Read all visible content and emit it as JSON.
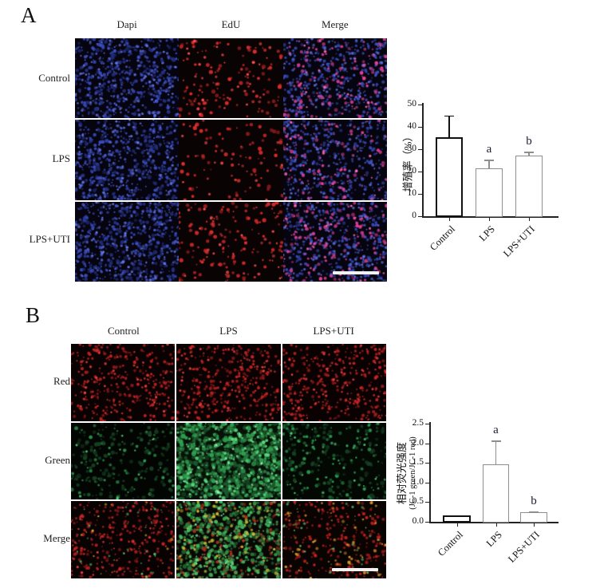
{
  "panelA": {
    "letter": "A",
    "col_headers": [
      "Dapi",
      "EdU",
      "Merge"
    ],
    "row_labels": [
      "Control",
      "LPS",
      "LPS+UTI"
    ],
    "has_scale_bar": true
  },
  "panelB": {
    "letter": "B",
    "col_headers": [
      "Control",
      "LPS",
      "LPS+UTI"
    ],
    "row_labels": [
      "Red",
      "Green",
      "Merge"
    ],
    "has_scale_bar": true
  },
  "chart_data": [
    {
      "type": "bar",
      "panel": "A",
      "categories": [
        "Control",
        "LPS",
        "LPS+UTI"
      ],
      "values": [
        35.5,
        21.5,
        27
      ],
      "errors": [
        9.5,
        3.7,
        1.8
      ],
      "sig_letters": [
        "",
        "a",
        "b"
      ],
      "ylabel": "增殖率（%）",
      "yticks": [
        "0",
        "10",
        "20",
        "30",
        "40",
        "50"
      ],
      "ylim": [
        0,
        50
      ],
      "bar_fill": "#ffffff",
      "bar_borders": [
        "#111111",
        "#8e8e8e",
        "#8e8e8e"
      ],
      "grid": false,
      "legend": "none"
    },
    {
      "type": "bar",
      "panel": "B",
      "categories": [
        "Control",
        "LPS",
        "LPS+UTI"
      ],
      "values": [
        0.17,
        1.47,
        0.24
      ],
      "errors": [
        0,
        0.6,
        0.02
      ],
      "sig_letters": [
        "",
        "a",
        "b"
      ],
      "ylabel": "相对荧光强度",
      "ylabel2": "(JC-1 green/JC-1 red)",
      "yticks": [
        "0.0",
        "0.5",
        "1.0",
        "1.5",
        "2.0",
        "2.5"
      ],
      "ylim": [
        0,
        2.5
      ],
      "bar_fill": "#ffffff",
      "bar_borders": [
        "#111111",
        "#8e8e8e",
        "#8e8e8e"
      ],
      "grid": false,
      "legend": "none"
    }
  ],
  "micrographs": {
    "scale_bar_color": "#f2f2f2",
    "A": {
      "cells": [
        [
          {
            "bg": "#05040f",
            "layers": [
              {
                "color": "#3a4cc0",
                "count": 300,
                "r": 1.7
              },
              {
                "color": "#6272e0",
                "count": 200,
                "r": 1.4
              },
              {
                "color": "#222e7a",
                "count": 120,
                "r": 1.9
              }
            ]
          },
          {
            "bg": "#0a0303",
            "layers": [
              {
                "color": "#d92b2b",
                "count": 110,
                "r": 1.9
              },
              {
                "color": "#ff4f4f",
                "count": 45,
                "r": 1.5
              }
            ]
          },
          {
            "bg": "#06050f",
            "layers": [
              {
                "color": "#3a4cc0",
                "count": 270,
                "r": 1.6
              },
              {
                "color": "#5b6ad8",
                "count": 150,
                "r": 1.4
              },
              {
                "color": "#e83f9a",
                "count": 110,
                "r": 1.8
              },
              {
                "color": "#ff66b8",
                "count": 40,
                "r": 1.5
              }
            ]
          }
        ],
        [
          {
            "bg": "#05040f",
            "layers": [
              {
                "color": "#3a4cc0",
                "count": 310,
                "r": 1.7
              },
              {
                "color": "#6272e0",
                "count": 190,
                "r": 1.4
              },
              {
                "color": "#222e7a",
                "count": 120,
                "r": 1.9
              }
            ]
          },
          {
            "bg": "#0a0303",
            "layers": [
              {
                "color": "#d92b2b",
                "count": 75,
                "r": 1.9
              },
              {
                "color": "#ff4f4f",
                "count": 30,
                "r": 1.5
              }
            ]
          },
          {
            "bg": "#06050f",
            "layers": [
              {
                "color": "#3a4cc0",
                "count": 280,
                "r": 1.6
              },
              {
                "color": "#5b6ad8",
                "count": 150,
                "r": 1.4
              },
              {
                "color": "#e83f9a",
                "count": 85,
                "r": 1.8
              },
              {
                "color": "#ff66b8",
                "count": 30,
                "r": 1.5
              }
            ]
          }
        ],
        [
          {
            "bg": "#05040f",
            "layers": [
              {
                "color": "#3a4cc0",
                "count": 320,
                "r": 1.7
              },
              {
                "color": "#6272e0",
                "count": 210,
                "r": 1.4
              },
              {
                "color": "#222e7a",
                "count": 130,
                "r": 1.9
              }
            ]
          },
          {
            "bg": "#0a0303",
            "layers": [
              {
                "color": "#d92b2b",
                "count": 120,
                "r": 1.9
              },
              {
                "color": "#ff4f4f",
                "count": 50,
                "r": 1.5
              }
            ]
          },
          {
            "bg": "#06050f",
            "layers": [
              {
                "color": "#3a4cc0",
                "count": 290,
                "r": 1.6
              },
              {
                "color": "#5b6ad8",
                "count": 160,
                "r": 1.4
              },
              {
                "color": "#e83f9a",
                "count": 125,
                "r": 1.8
              },
              {
                "color": "#ff66b8",
                "count": 45,
                "r": 1.5
              }
            ]
          }
        ]
      ]
    },
    "B": {
      "cells": [
        [
          {
            "bg": "#0a0202",
            "layers": [
              {
                "color": "#c22222",
                "count": 240,
                "r": 1.6
              },
              {
                "color": "#e84040",
                "count": 90,
                "r": 1.3
              }
            ]
          },
          {
            "bg": "#0a0202",
            "layers": [
              {
                "color": "#c22222",
                "count": 260,
                "r": 1.6
              },
              {
                "color": "#e84040",
                "count": 100,
                "r": 1.3
              }
            ]
          },
          {
            "bg": "#0a0202",
            "layers": [
              {
                "color": "#c22222",
                "count": 250,
                "r": 1.6
              },
              {
                "color": "#e84040",
                "count": 95,
                "r": 1.3
              }
            ]
          }
        ],
        [
          {
            "bg": "#020502",
            "layers": [
              {
                "color": "#2e9e50",
                "count": 60,
                "r": 1.8
              },
              {
                "color": "#58d37a",
                "count": 28,
                "r": 1.4
              },
              {
                "color": "#173f22",
                "count": 160,
                "r": 2.0
              }
            ]
          },
          {
            "bg": "#071207",
            "layers": [
              {
                "color": "#1d5a2e",
                "count": 420,
                "r": 2.4
              },
              {
                "color": "#2f9e50",
                "count": 300,
                "r": 2.2
              },
              {
                "color": "#5fd980",
                "count": 200,
                "r": 1.7
              },
              {
                "color": "#9ef0b4",
                "count": 60,
                "r": 1.2
              }
            ]
          },
          {
            "bg": "#030803",
            "layers": [
              {
                "color": "#2e9e50",
                "count": 100,
                "r": 1.8
              },
              {
                "color": "#58d37a",
                "count": 40,
                "r": 1.4
              },
              {
                "color": "#173f22",
                "count": 140,
                "r": 2.0
              }
            ]
          }
        ],
        [
          {
            "bg": "#080202",
            "layers": [
              {
                "color": "#c22222",
                "count": 230,
                "r": 1.6
              },
              {
                "color": "#e84040",
                "count": 80,
                "r": 1.3
              },
              {
                "color": "#58c070",
                "count": 30,
                "r": 1.4
              },
              {
                "color": "#d0a830",
                "count": 14,
                "r": 1.4
              }
            ]
          },
          {
            "bg": "#070803",
            "layers": [
              {
                "color": "#b83020",
                "count": 170,
                "r": 1.7
              },
              {
                "color": "#2a7a3e",
                "count": 240,
                "r": 2.1
              },
              {
                "color": "#44bd62",
                "count": 260,
                "r": 1.9
              },
              {
                "color": "#cdbb35",
                "count": 90,
                "r": 1.6
              },
              {
                "color": "#7ee398",
                "count": 70,
                "r": 1.3
              }
            ]
          },
          {
            "bg": "#090302",
            "layers": [
              {
                "color": "#c22222",
                "count": 220,
                "r": 1.6
              },
              {
                "color": "#d89a2a",
                "count": 70,
                "r": 1.5
              },
              {
                "color": "#58c070",
                "count": 35,
                "r": 1.3
              }
            ]
          }
        ]
      ]
    }
  }
}
